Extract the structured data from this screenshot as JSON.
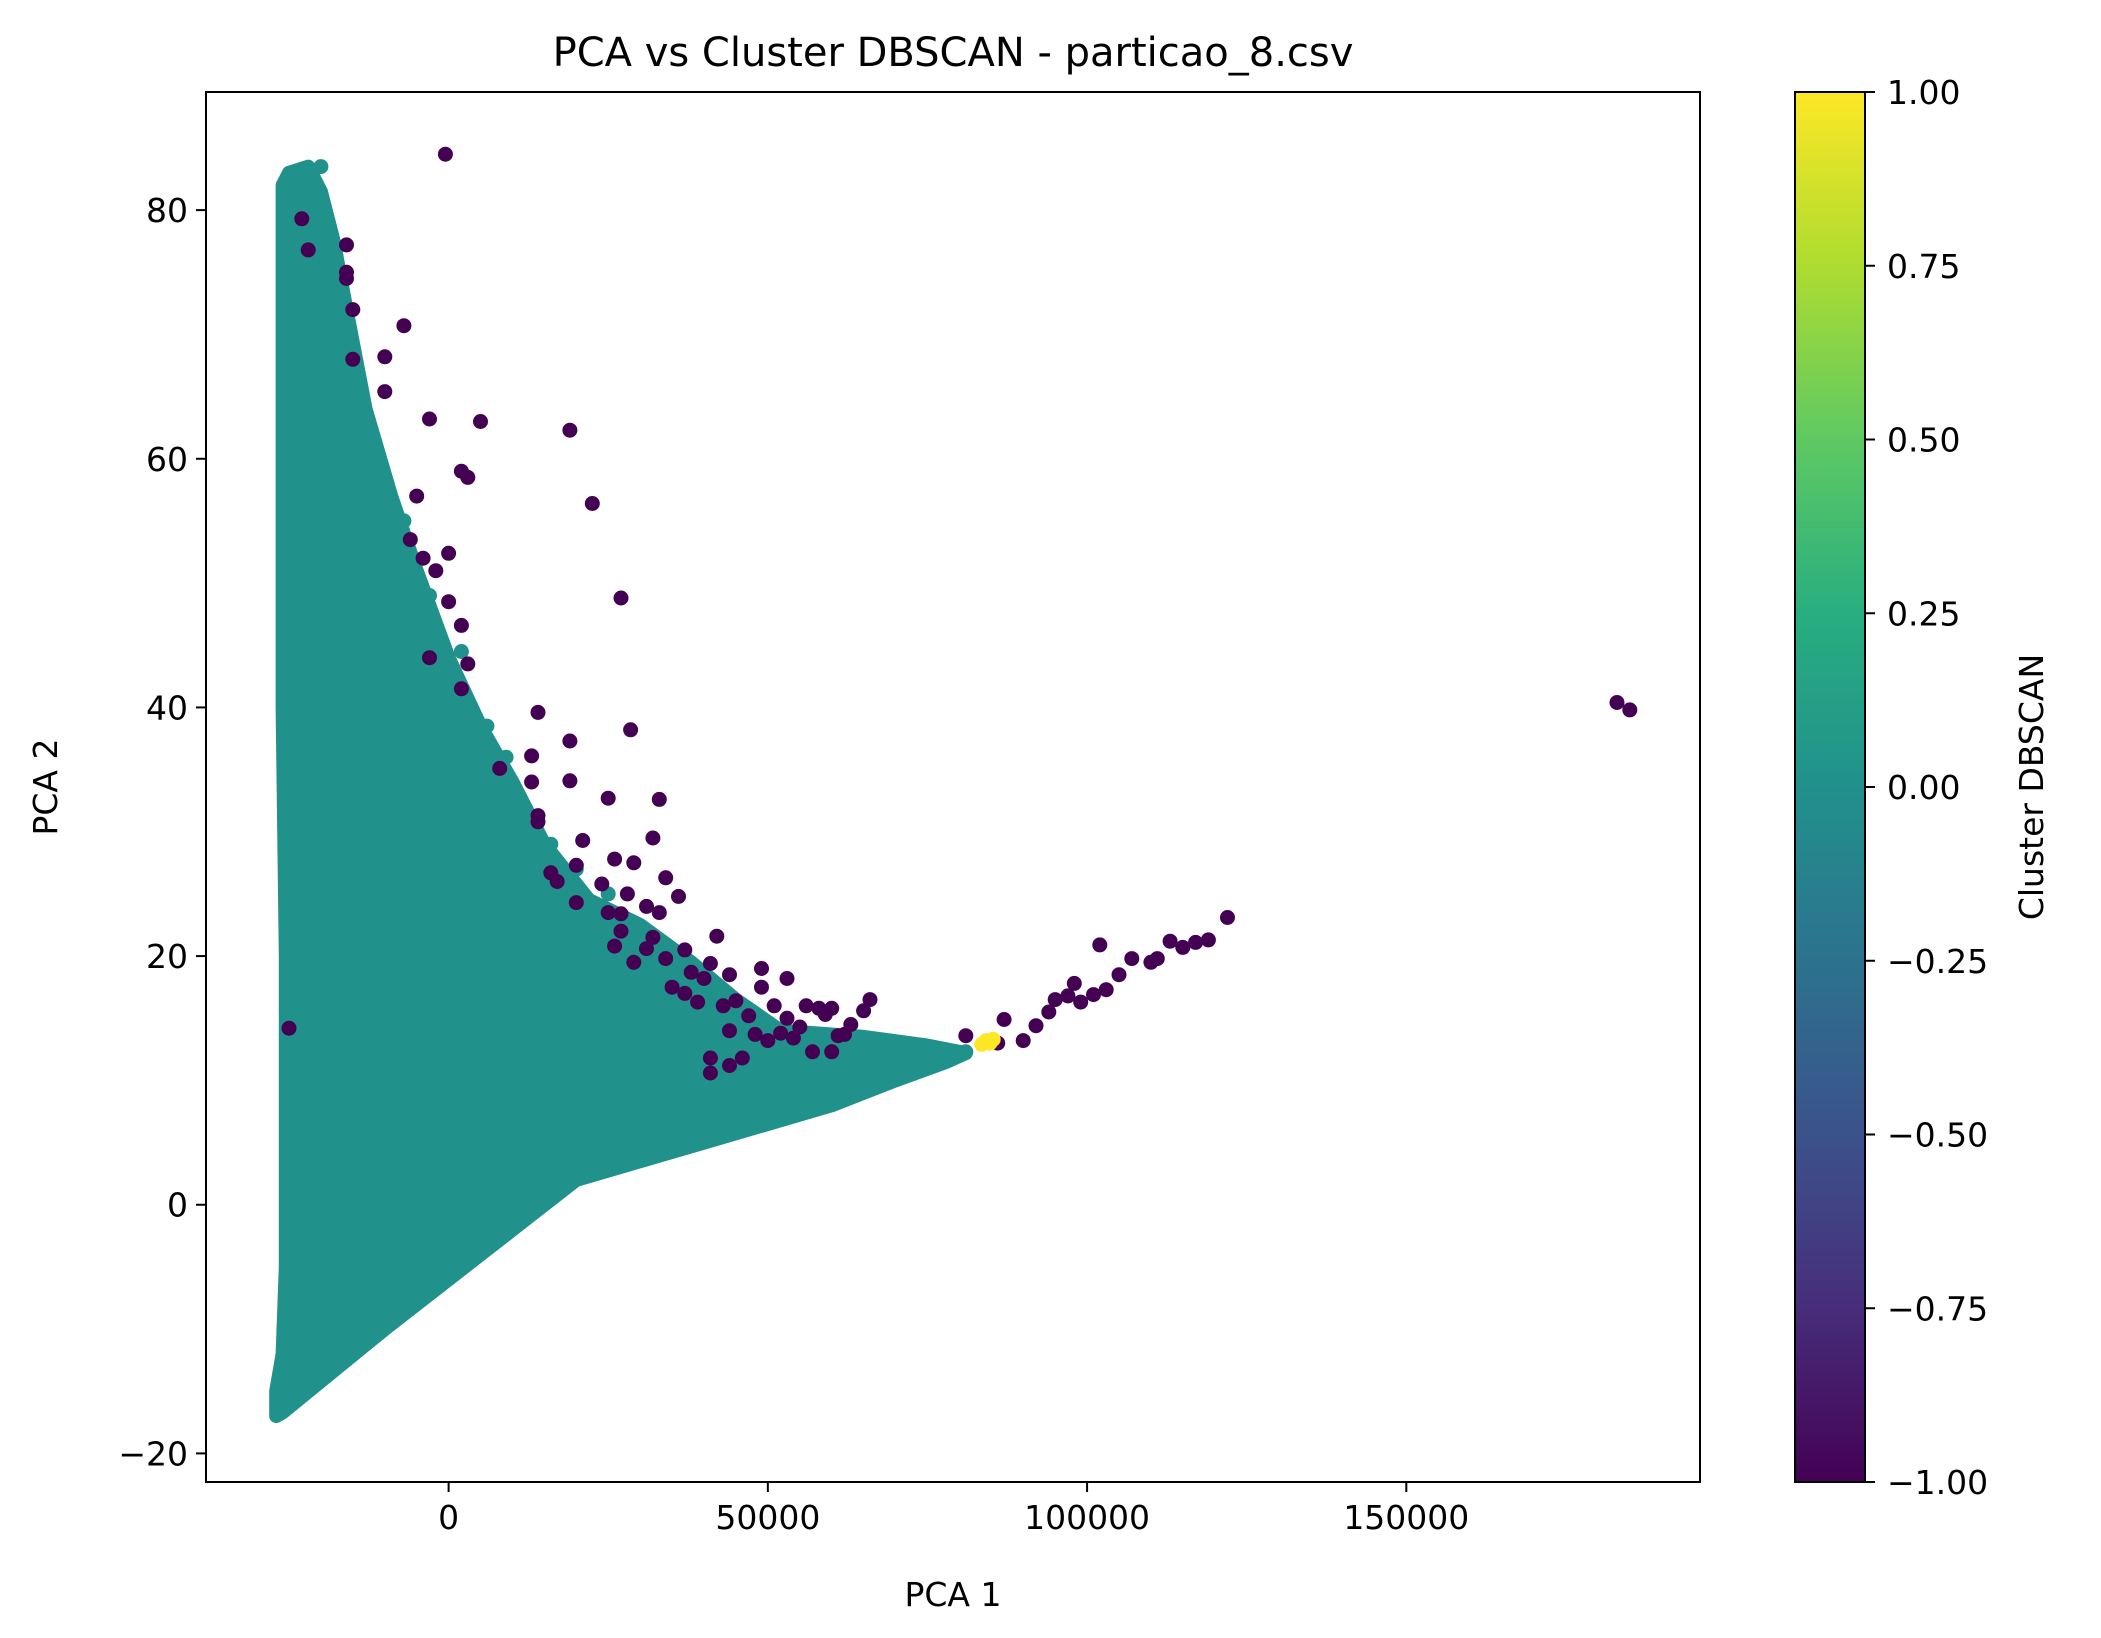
{
  "chart_data": {
    "type": "scatter",
    "title": "PCA vs Cluster DBSCAN - particao_8.csv",
    "xlabel": "PCA 1",
    "ylabel": "PCA 2",
    "xlim": [
      -38000,
      196000
    ],
    "ylim": [
      -22.3,
      89.5
    ],
    "xticks": [
      0,
      50000,
      100000,
      150000
    ],
    "xtick_labels": [
      "0",
      "50000",
      "100000",
      "150000"
    ],
    "yticks": [
      -20,
      0,
      20,
      40,
      60,
      80
    ],
    "ytick_labels": [
      "−20",
      "0",
      "20",
      "40",
      "60",
      "80"
    ],
    "grid": false,
    "colorbar": {
      "label": "Cluster DBSCAN",
      "colormap": "viridis",
      "range": [
        -1,
        1
      ],
      "ticks": [
        1.0,
        0.75,
        0.5,
        0.25,
        0.0,
        -0.25,
        -0.5,
        -0.75,
        -1.0
      ],
      "tick_labels": [
        "1.00",
        "0.75",
        "0.50",
        "0.25",
        "0.00",
        "−0.25",
        "−0.50",
        "−0.75",
        "−1.00"
      ]
    },
    "cluster_colors": {
      "-1": "#440154",
      "0": "#21918c",
      "1": "#fde725"
    },
    "dense_cluster": {
      "cluster": 0,
      "outline": [
        [
          -27000,
          -17
        ],
        [
          -26000,
          -16.7
        ],
        [
          -10000,
          -10
        ],
        [
          20000,
          2
        ],
        [
          40000,
          5
        ],
        [
          60000,
          8
        ],
        [
          70000,
          10
        ],
        [
          78000,
          11.5
        ],
        [
          81000,
          12.2
        ],
        [
          75000,
          12.8
        ],
        [
          65000,
          13.5
        ],
        [
          52000,
          14
        ],
        [
          45000,
          16.5
        ],
        [
          38000,
          19.5
        ],
        [
          30000,
          22.5
        ],
        [
          22000,
          24.5
        ],
        [
          15000,
          29
        ],
        [
          10000,
          34
        ],
        [
          5000,
          38.5
        ],
        [
          0,
          44
        ],
        [
          -5000,
          51
        ],
        [
          -9000,
          57
        ],
        [
          -13000,
          64
        ],
        [
          -16000,
          72
        ],
        [
          -18000,
          77.5
        ],
        [
          -20000,
          81.5
        ],
        [
          -22000,
          83.5
        ],
        [
          -25000,
          83
        ],
        [
          -26000,
          82
        ],
        [
          -26000,
          76
        ],
        [
          -26000,
          60
        ],
        [
          -26000,
          40
        ],
        [
          -25500,
          20
        ],
        [
          -25500,
          -5
        ],
        [
          -26000,
          -12
        ],
        [
          -27000,
          -15
        ]
      ]
    },
    "series": [
      {
        "cluster": -1,
        "points": [
          [
            -500,
            84.5
          ],
          [
            -23000,
            79.3
          ],
          [
            -22000,
            76.8
          ],
          [
            -16000,
            77.2
          ],
          [
            -16000,
            75
          ],
          [
            -16000,
            74.5
          ],
          [
            -7000,
            70.7
          ],
          [
            -15000,
            72
          ],
          [
            -15000,
            68
          ],
          [
            -10000,
            68.2
          ],
          [
            -10000,
            65.4
          ],
          [
            -3000,
            63.2
          ],
          [
            5000,
            63
          ],
          [
            19000,
            62.3
          ],
          [
            2000,
            59
          ],
          [
            3000,
            58.5
          ],
          [
            -5000,
            57
          ],
          [
            22500,
            56.4
          ],
          [
            -6000,
            53.5
          ],
          [
            -4000,
            52
          ],
          [
            0,
            52.4
          ],
          [
            -2000,
            51
          ],
          [
            0,
            48.5
          ],
          [
            27000,
            48.8
          ],
          [
            2000,
            46.6
          ],
          [
            -3000,
            44
          ],
          [
            3000,
            43.5
          ],
          [
            2000,
            41.5
          ],
          [
            14000,
            39.6
          ],
          [
            28500,
            38.2
          ],
          [
            19000,
            37.3
          ],
          [
            13000,
            36.1
          ],
          [
            8000,
            35.1
          ],
          [
            13000,
            34
          ],
          [
            19000,
            34.1
          ],
          [
            25000,
            32.7
          ],
          [
            33000,
            32.6
          ],
          [
            14000,
            31.3
          ],
          [
            14000,
            30.8
          ],
          [
            21000,
            29.3
          ],
          [
            32000,
            29.5
          ],
          [
            26000,
            27.8
          ],
          [
            29000,
            27.5
          ],
          [
            16000,
            26.7
          ],
          [
            20000,
            27.3
          ],
          [
            17000,
            26
          ],
          [
            24000,
            25.8
          ],
          [
            34000,
            26.3
          ],
          [
            28000,
            25
          ],
          [
            36000,
            24.8
          ],
          [
            20000,
            24.3
          ],
          [
            31000,
            24
          ],
          [
            25000,
            23.5
          ],
          [
            27000,
            23.4
          ],
          [
            33000,
            23.5
          ],
          [
            27000,
            22
          ],
          [
            32000,
            21.5
          ],
          [
            42000,
            21.6
          ],
          [
            26000,
            20.8
          ],
          [
            31000,
            20.6
          ],
          [
            37000,
            20.5
          ],
          [
            29000,
            19.5
          ],
          [
            34000,
            19.8
          ],
          [
            41000,
            19.4
          ],
          [
            49000,
            19
          ],
          [
            44000,
            18.5
          ],
          [
            53000,
            18.2
          ],
          [
            38000,
            18.7
          ],
          [
            40000,
            18.2
          ],
          [
            49000,
            17.5
          ],
          [
            35000,
            17.5
          ],
          [
            37000,
            17
          ],
          [
            39000,
            16.3
          ],
          [
            43000,
            16
          ],
          [
            45000,
            16.4
          ],
          [
            51000,
            16
          ],
          [
            56000,
            16
          ],
          [
            58000,
            15.8
          ],
          [
            60000,
            15.8
          ],
          [
            59000,
            15.3
          ],
          [
            66000,
            16.5
          ],
          [
            65000,
            15.6
          ],
          [
            47000,
            15.2
          ],
          [
            53000,
            15
          ],
          [
            63000,
            14.5
          ],
          [
            55000,
            14.3
          ],
          [
            44000,
            14
          ],
          [
            48000,
            13.7
          ],
          [
            50000,
            13.2
          ],
          [
            52000,
            13.8
          ],
          [
            54000,
            13.4
          ],
          [
            61000,
            13.6
          ],
          [
            62000,
            13.7
          ],
          [
            57000,
            12.3
          ],
          [
            60000,
            12.3
          ],
          [
            46000,
            11.8
          ],
          [
            44000,
            11.2
          ],
          [
            41000,
            10.6
          ],
          [
            41000,
            11.8
          ],
          [
            -25000,
            14.2
          ],
          [
            81000,
            13.6
          ],
          [
            87000,
            14.9
          ],
          [
            86000,
            13
          ],
          [
            90000,
            13.2
          ],
          [
            92000,
            14.4
          ],
          [
            94000,
            15.5
          ],
          [
            95000,
            16.5
          ],
          [
            97000,
            16.8
          ],
          [
            98000,
            17.8
          ],
          [
            99000,
            16.3
          ],
          [
            101000,
            16.9
          ],
          [
            103000,
            17.3
          ],
          [
            105000,
            18.5
          ],
          [
            107000,
            19.8
          ],
          [
            110000,
            19.5
          ],
          [
            111000,
            19.8
          ],
          [
            113000,
            21.2
          ],
          [
            115000,
            20.7
          ],
          [
            117000,
            21.1
          ],
          [
            119000,
            21.3
          ],
          [
            122000,
            23.1
          ],
          [
            102000,
            20.9
          ],
          [
            183000,
            40.4
          ],
          [
            185000,
            39.8
          ]
        ]
      },
      {
        "cluster": 0,
        "points": [
          [
            -20000,
            83.5
          ],
          [
            -23000,
            82.5
          ],
          [
            -24500,
            81
          ],
          [
            -24000,
            79.8
          ],
          [
            -23500,
            78.5
          ],
          [
            -21000,
            80.5
          ],
          [
            -19500,
            78.3
          ],
          [
            -18500,
            77.5
          ],
          [
            -20500,
            76.3
          ],
          [
            -17500,
            74.5
          ],
          [
            -14500,
            67
          ],
          [
            -12500,
            61
          ],
          [
            -7000,
            55
          ],
          [
            -3000,
            49
          ],
          [
            2000,
            44.5
          ],
          [
            6000,
            38.5
          ],
          [
            9000,
            36
          ],
          [
            13000,
            31
          ],
          [
            16000,
            29
          ],
          [
            20000,
            27
          ],
          [
            25000,
            25
          ],
          [
            30000,
            22.4
          ],
          [
            35000,
            20
          ],
          [
            40000,
            18.3
          ],
          [
            45000,
            15.8
          ],
          [
            50000,
            14.5
          ],
          [
            55000,
            13.2
          ],
          [
            60000,
            12.2
          ],
          [
            65000,
            11.7
          ],
          [
            72000,
            11.3
          ],
          [
            76000,
            11.7
          ],
          [
            79000,
            12
          ],
          [
            81000,
            12.3
          ],
          [
            -25000,
            70
          ],
          [
            -25500,
            50
          ],
          [
            -25200,
            30
          ],
          [
            -25400,
            10
          ],
          [
            -25800,
            -10
          ],
          [
            -26500,
            -16.5
          ],
          [
            33000,
            14.2
          ],
          [
            35000,
            13.1
          ],
          [
            38000,
            12.2
          ],
          [
            -23000,
            33
          ],
          [
            -25000,
            46
          ]
        ]
      },
      {
        "cluster": 1,
        "points": [
          [
            83500,
            12.9
          ],
          [
            84200,
            13.2
          ],
          [
            84800,
            13.0
          ],
          [
            85300,
            13.3
          ]
        ]
      }
    ]
  }
}
